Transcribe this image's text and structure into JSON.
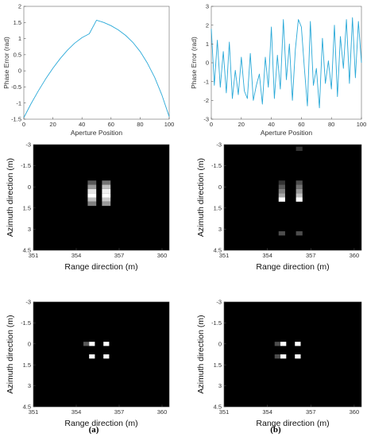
{
  "captions": {
    "left": "(a)",
    "right": "(b)"
  },
  "colors": {
    "line": "#2aa9d8",
    "image_bg": "#000000",
    "axis": "#555555"
  },
  "chart_data": [
    {
      "id": "phase-a",
      "type": "line",
      "xlabel": "Aperture Position",
      "ylabel": "Phase Error (rad)",
      "xlim": [
        0,
        100
      ],
      "ylim": [
        -1.5,
        2
      ],
      "xticks": [
        "0",
        "20",
        "40",
        "60",
        "80",
        "100"
      ],
      "yticks": [
        "-1.5",
        "-1",
        "-0.5",
        "0",
        "0.5",
        "1",
        "1.5",
        "2"
      ],
      "series": [
        {
          "x": [
            0,
            5,
            10,
            15,
            20,
            25,
            30,
            35,
            40,
            45,
            50,
            55,
            60,
            65,
            70,
            75,
            80,
            85,
            90,
            95,
            100
          ],
          "y": [
            -1.45,
            -1.02,
            -0.62,
            -0.25,
            0.08,
            0.38,
            0.64,
            0.86,
            1.03,
            1.15,
            1.57,
            1.5,
            1.4,
            1.27,
            1.1,
            0.88,
            0.6,
            0.24,
            -0.2,
            -0.75,
            -1.42
          ]
        }
      ]
    },
    {
      "id": "phase-b",
      "type": "line",
      "xlabel": "Aperture Position",
      "ylabel": "Phase Error (rad)",
      "xlim": [
        0,
        100
      ],
      "ylim": [
        -3,
        3
      ],
      "xticks": [
        "0",
        "20",
        "40",
        "60",
        "80",
        "100"
      ],
      "yticks": [
        "-3",
        "-2",
        "-1",
        "0",
        "1",
        "2",
        "3"
      ],
      "series": [
        {
          "x": [
            0,
            2,
            4,
            6,
            8,
            10,
            12,
            14,
            16,
            18,
            20,
            22,
            24,
            26,
            28,
            30,
            32,
            34,
            36,
            38,
            40,
            42,
            44,
            46,
            48,
            50,
            52,
            54,
            56,
            58,
            60,
            62,
            64,
            66,
            68,
            70,
            72,
            74,
            76,
            78,
            80,
            82,
            84,
            86,
            88,
            90,
            92,
            94,
            96,
            98,
            100
          ],
          "y": [
            1.8,
            -1.2,
            1.2,
            -1.3,
            0.6,
            -1.6,
            1.1,
            -1.9,
            -0.4,
            -1.7,
            0.3,
            -1.5,
            -1.9,
            0.5,
            -2.0,
            -1.2,
            -0.6,
            -2.2,
            0.3,
            -1.3,
            1.9,
            -1.9,
            0.4,
            -1.4,
            2.3,
            -0.9,
            1.0,
            -2.0,
            0.7,
            2.3,
            1.9,
            -0.3,
            -2.3,
            2.2,
            -1.2,
            -0.3,
            -2.4,
            1.3,
            -1.1,
            0.1,
            -1.4,
            2.0,
            -1.8,
            1.4,
            -0.3,
            2.3,
            -1.1,
            2.4,
            -0.8,
            2.2,
            0.0
          ]
        }
      ]
    },
    {
      "id": "img-a-top",
      "type": "heatmap",
      "xlabel": "Range direction (m)",
      "ylabel": "Azimuth direction (m)",
      "xlim": [
        351,
        360.5
      ],
      "ylim": [
        -3,
        4.5
      ],
      "xticks": [
        "351",
        "354",
        "357",
        "360"
      ],
      "yticks": [
        "-3",
        "-1.5",
        "0",
        "1.5",
        "3",
        "4.5"
      ],
      "pixel_size": [
        0.6,
        0.3
      ],
      "points": [
        {
          "x": 355.1,
          "y": -0.3,
          "v": 0.35
        },
        {
          "x": 355.1,
          "y": 0.0,
          "v": 0.6
        },
        {
          "x": 355.1,
          "y": 0.3,
          "v": 0.9
        },
        {
          "x": 355.1,
          "y": 0.6,
          "v": 1.0
        },
        {
          "x": 355.1,
          "y": 0.9,
          "v": 0.75
        },
        {
          "x": 355.1,
          "y": 1.2,
          "v": 0.5
        },
        {
          "x": 356.1,
          "y": -0.3,
          "v": 0.45
        },
        {
          "x": 356.1,
          "y": 0.0,
          "v": 0.75
        },
        {
          "x": 356.1,
          "y": 0.3,
          "v": 0.95
        },
        {
          "x": 356.1,
          "y": 0.6,
          "v": 1.0
        },
        {
          "x": 356.1,
          "y": 0.9,
          "v": 0.8
        },
        {
          "x": 356.1,
          "y": 1.2,
          "v": 0.6
        }
      ]
    },
    {
      "id": "img-b-top",
      "type": "heatmap",
      "xlabel": "Range direction (m)",
      "ylabel": "Azimuth direction (m)",
      "xlim": [
        351,
        360.5
      ],
      "ylim": [
        -3,
        4.5
      ],
      "xticks": [
        "351",
        "354",
        "357",
        "360"
      ],
      "yticks": [
        "-3",
        "-1.5",
        "0",
        "1.5",
        "3",
        "4.5"
      ],
      "pixel_size": [
        0.45,
        0.3
      ],
      "points": [
        {
          "x": 356.2,
          "y": -2.7,
          "v": 0.2
        },
        {
          "x": 355.0,
          "y": -0.3,
          "v": 0.2
        },
        {
          "x": 355.0,
          "y": 0.0,
          "v": 0.35
        },
        {
          "x": 355.0,
          "y": 0.3,
          "v": 0.5
        },
        {
          "x": 355.0,
          "y": 0.6,
          "v": 0.65
        },
        {
          "x": 355.0,
          "y": 0.9,
          "v": 1.0
        },
        {
          "x": 356.2,
          "y": -0.3,
          "v": 0.3
        },
        {
          "x": 356.2,
          "y": 0.0,
          "v": 0.45
        },
        {
          "x": 356.2,
          "y": 0.3,
          "v": 0.6
        },
        {
          "x": 356.2,
          "y": 0.6,
          "v": 0.75
        },
        {
          "x": 356.2,
          "y": 0.9,
          "v": 1.0
        },
        {
          "x": 355.0,
          "y": 3.3,
          "v": 0.3
        },
        {
          "x": 356.2,
          "y": 3.3,
          "v": 0.3
        }
      ]
    },
    {
      "id": "img-a-bottom",
      "type": "heatmap",
      "xlabel": "Range direction (m)",
      "ylabel": "Azimuth direction (m)",
      "xlim": [
        351,
        360.5
      ],
      "ylim": [
        -3,
        4.5
      ],
      "xticks": [
        "351",
        "354",
        "357",
        "360"
      ],
      "yticks": [
        "-3",
        "-1.5",
        "0",
        "1.5",
        "3",
        "4.5"
      ],
      "pixel_size": [
        0.4,
        0.3
      ],
      "points": [
        {
          "x": 354.7,
          "y": 0.0,
          "v": 0.35
        },
        {
          "x": 355.1,
          "y": 0.0,
          "v": 1.0
        },
        {
          "x": 356.1,
          "y": 0.0,
          "v": 1.0
        },
        {
          "x": 355.1,
          "y": 0.9,
          "v": 1.0
        },
        {
          "x": 356.1,
          "y": 0.9,
          "v": 1.0
        }
      ]
    },
    {
      "id": "img-b-bottom",
      "type": "heatmap",
      "xlabel": "Range direction (m)",
      "ylabel": "Azimuth direction (m)",
      "xlim": [
        351,
        360.5
      ],
      "ylim": [
        -3,
        4.5
      ],
      "xticks": [
        "351",
        "354",
        "357",
        "360"
      ],
      "yticks": [
        "-3",
        "-1.5",
        "0",
        "1.5",
        "3",
        "4.5"
      ],
      "pixel_size": [
        0.4,
        0.3
      ],
      "points": [
        {
          "x": 354.7,
          "y": 0.0,
          "v": 0.3
        },
        {
          "x": 354.7,
          "y": 0.9,
          "v": 0.3
        },
        {
          "x": 355.1,
          "y": 0.0,
          "v": 1.0
        },
        {
          "x": 356.1,
          "y": 0.0,
          "v": 1.0
        },
        {
          "x": 355.1,
          "y": 0.9,
          "v": 1.0
        },
        {
          "x": 356.1,
          "y": 0.9,
          "v": 1.0
        }
      ]
    }
  ]
}
